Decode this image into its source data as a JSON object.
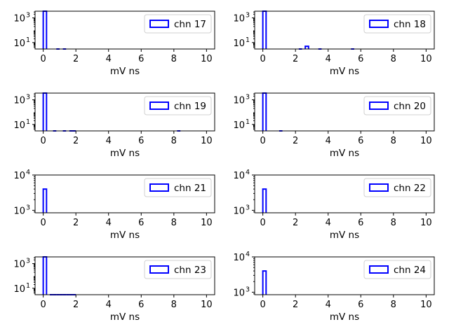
{
  "chart_data": [
    {
      "type": "bar",
      "chart_style": "histogram-step",
      "legend": "chn 17",
      "legend_position": "upper right",
      "xlabel": "mV ns",
      "xlim": [
        -0.5,
        10.5
      ],
      "xticks": [
        0,
        2,
        4,
        6,
        8,
        10
      ],
      "yscale": "log",
      "ylim": [
        3,
        3500
      ],
      "yticks": [
        {
          "value": 10,
          "label": "10",
          "exp": "1"
        },
        {
          "value": 1000,
          "label": "10",
          "exp": "3"
        }
      ],
      "bin_width": 0.2,
      "bins": [
        {
          "x": 0,
          "count": 3500
        },
        {
          "x": 0.8,
          "count": 3
        },
        {
          "x": 1.2,
          "count": 3
        }
      ]
    },
    {
      "type": "bar",
      "chart_style": "histogram-step",
      "legend": "chn 18",
      "legend_position": "upper right",
      "xlabel": "mV ns",
      "xlim": [
        -0.5,
        10.5
      ],
      "xticks": [
        0,
        2,
        4,
        6,
        8,
        10
      ],
      "yscale": "log",
      "ylim": [
        3,
        3500
      ],
      "yticks": [
        {
          "value": 10,
          "label": "10",
          "exp": "1"
        },
        {
          "value": 1000,
          "label": "10",
          "exp": "3"
        }
      ],
      "bin_width": 0.2,
      "bins": [
        {
          "x": 0,
          "count": 3500
        },
        {
          "x": 2.2,
          "count": 3
        },
        {
          "x": 2.6,
          "count": 5
        },
        {
          "x": 3.4,
          "count": 3
        },
        {
          "x": 5.4,
          "count": 3
        }
      ]
    },
    {
      "type": "bar",
      "chart_style": "histogram-step",
      "legend": "chn 19",
      "legend_position": "upper right",
      "xlabel": "mV ns",
      "xlim": [
        -0.5,
        10.5
      ],
      "xticks": [
        0,
        2,
        4,
        6,
        8,
        10
      ],
      "yscale": "log",
      "ylim": [
        3,
        3500
      ],
      "yticks": [
        {
          "value": 10,
          "label": "10",
          "exp": "1"
        },
        {
          "value": 1000,
          "label": "10",
          "exp": "3"
        }
      ],
      "bin_width": 0.2,
      "bins": [
        {
          "x": 0,
          "count": 3500
        },
        {
          "x": 0.6,
          "count": 3
        },
        {
          "x": 1.2,
          "count": 3
        },
        {
          "x": 1.6,
          "count": 3
        },
        {
          "x": 1.8,
          "count": 3
        },
        {
          "x": 8.2,
          "count": 3
        }
      ]
    },
    {
      "type": "bar",
      "chart_style": "histogram-step",
      "legend": "chn 20",
      "legend_position": "upper right",
      "xlabel": "mV ns",
      "xlim": [
        -0.5,
        10.5
      ],
      "xticks": [
        0,
        2,
        4,
        6,
        8,
        10
      ],
      "yscale": "log",
      "ylim": [
        3,
        3500
      ],
      "yticks": [
        {
          "value": 10,
          "label": "10",
          "exp": "1"
        },
        {
          "value": 1000,
          "label": "10",
          "exp": "3"
        }
      ],
      "bin_width": 0.2,
      "bins": [
        {
          "x": 0,
          "count": 3500
        },
        {
          "x": 1.0,
          "count": 3
        }
      ]
    },
    {
      "type": "bar",
      "chart_style": "histogram-step",
      "legend": "chn 21",
      "legend_position": "upper right",
      "xlabel": "mV ns",
      "xlim": [
        -0.5,
        10.5
      ],
      "xticks": [
        0,
        2,
        4,
        6,
        8,
        10
      ],
      "yscale": "log",
      "ylim": [
        850,
        10000
      ],
      "yticks": [
        {
          "value": 1000,
          "label": "10",
          "exp": "3"
        },
        {
          "value": 10000,
          "label": "10",
          "exp": "4"
        }
      ],
      "bin_width": 0.2,
      "bins": [
        {
          "x": 0,
          "count": 4000
        }
      ]
    },
    {
      "type": "bar",
      "chart_style": "histogram-step",
      "legend": "chn 22",
      "legend_position": "upper right",
      "xlabel": "mV ns",
      "xlim": [
        -0.5,
        10.5
      ],
      "xticks": [
        0,
        2,
        4,
        6,
        8,
        10
      ],
      "yscale": "log",
      "ylim": [
        850,
        10000
      ],
      "yticks": [
        {
          "value": 1000,
          "label": "10",
          "exp": "3"
        },
        {
          "value": 10000,
          "label": "10",
          "exp": "4"
        }
      ],
      "bin_width": 0.2,
      "bins": [
        {
          "x": 0,
          "count": 4000
        }
      ]
    },
    {
      "type": "bar",
      "chart_style": "histogram-step",
      "legend": "chn 23",
      "legend_position": "upper right",
      "xlabel": "mV ns",
      "xlim": [
        -0.5,
        10.5
      ],
      "xticks": [
        0,
        2,
        4,
        6,
        8,
        10
      ],
      "yscale": "log",
      "ylim": [
        3,
        3500
      ],
      "yticks": [
        {
          "value": 10,
          "label": "10",
          "exp": "1"
        },
        {
          "value": 1000,
          "label": "10",
          "exp": "3"
        }
      ],
      "bin_width": 0.2,
      "bins": [
        {
          "x": 0,
          "count": 3500
        },
        {
          "x": 0.4,
          "count": 3
        },
        {
          "x": 0.6,
          "count": 3
        },
        {
          "x": 0.8,
          "count": 3
        },
        {
          "x": 1.0,
          "count": 3
        },
        {
          "x": 1.2,
          "count": 3
        },
        {
          "x": 1.4,
          "count": 3
        },
        {
          "x": 1.6,
          "count": 3
        },
        {
          "x": 1.8,
          "count": 3
        }
      ]
    },
    {
      "type": "bar",
      "chart_style": "histogram-step",
      "legend": "chn 24",
      "legend_position": "upper right",
      "xlabel": "mV ns",
      "xlim": [
        -0.5,
        10.5
      ],
      "xticks": [
        0,
        2,
        4,
        6,
        8,
        10
      ],
      "yscale": "log",
      "ylim": [
        850,
        10000
      ],
      "yticks": [
        {
          "value": 1000,
          "label": "10",
          "exp": "3"
        },
        {
          "value": 10000,
          "label": "10",
          "exp": "4"
        }
      ],
      "bin_width": 0.2,
      "bins": [
        {
          "x": 0,
          "count": 4000
        }
      ]
    }
  ],
  "colors": {
    "series": "#0000ff",
    "axes": "#000000",
    "legend_border": "#d0d0d0",
    "background": "#ffffff"
  }
}
